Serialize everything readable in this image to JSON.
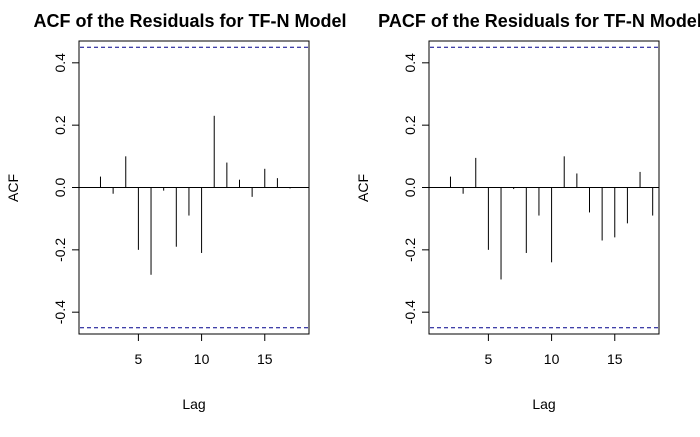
{
  "chart_data": [
    {
      "type": "bar",
      "title": "ACF of the Residuals for TF-N Model",
      "xlabel": "Lag",
      "ylabel": "ACF",
      "xlim": [
        0.3,
        18.5
      ],
      "ylim": [
        -0.47,
        0.47
      ],
      "x_ticks": [
        5,
        10,
        15
      ],
      "y_ticks": [
        -0.4,
        -0.2,
        0.0,
        0.2,
        0.4
      ],
      "y_tick_labels": [
        "-0.4",
        "-0.2",
        "0.0",
        "0.2",
        "0.4"
      ],
      "confidence_band": 0.45,
      "x": [
        1,
        2,
        3,
        4,
        5,
        6,
        7,
        8,
        9,
        10,
        11,
        12,
        13,
        14,
        15,
        16,
        17,
        18
      ],
      "values": [
        0.0,
        0.035,
        -0.02,
        0.1,
        -0.2,
        -0.28,
        -0.01,
        -0.19,
        -0.09,
        -0.21,
        0.23,
        0.08,
        0.025,
        -0.03,
        0.06,
        0.03,
        -0.003,
        0.0
      ]
    },
    {
      "type": "bar",
      "title": "PACF of the Residuals for TF-N Model",
      "xlabel": "Lag",
      "ylabel": "ACF",
      "xlim": [
        0.3,
        18.5
      ],
      "ylim": [
        -0.47,
        0.47
      ],
      "x_ticks": [
        5,
        10,
        15
      ],
      "y_ticks": [
        -0.4,
        -0.2,
        0.0,
        0.2,
        0.4
      ],
      "y_tick_labels": [
        "-0.4",
        "-0.2",
        "0.0",
        "0.2",
        "0.4"
      ],
      "confidence_band": 0.45,
      "x": [
        1,
        2,
        3,
        4,
        5,
        6,
        7,
        8,
        9,
        10,
        11,
        12,
        13,
        14,
        15,
        16,
        17,
        18
      ],
      "values": [
        0.0,
        0.035,
        -0.02,
        0.095,
        -0.2,
        -0.295,
        -0.005,
        -0.21,
        -0.09,
        -0.24,
        0.1,
        0.045,
        -0.08,
        -0.17,
        -0.16,
        -0.115,
        0.05,
        -0.09
      ]
    }
  ],
  "colors": {
    "confidence_band": "#00008B",
    "bars": "#000000",
    "frame": "#000000"
  }
}
